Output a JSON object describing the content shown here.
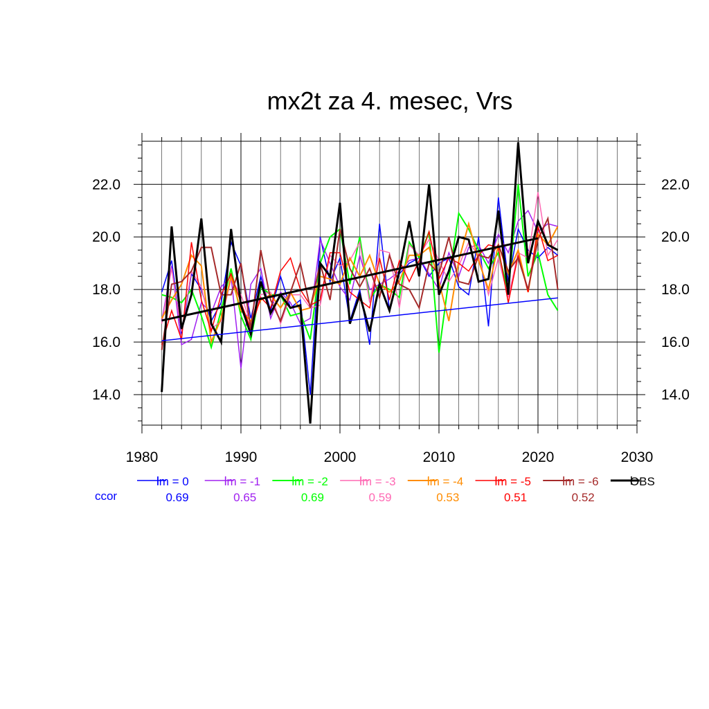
{
  "chart_data": {
    "type": "line",
    "title": "mx2t za 4. mesec, Vrs",
    "xlabel": "",
    "ylabel": "",
    "xlim": [
      1980,
      2030
    ],
    "ylim": [
      12.84,
      23.64
    ],
    "x_ticks": [
      1980,
      1990,
      2000,
      2010,
      2020,
      2030
    ],
    "x_tick_labels": [
      "1980",
      "1990",
      "2000",
      "2010",
      "2020",
      "2030"
    ],
    "y_ticks": [
      14.0,
      16.0,
      18.0,
      20.0,
      22.0
    ],
    "y_tick_labels": [
      "14.0",
      "16.0",
      "18.0",
      "20.0",
      "22.0"
    ],
    "grid": true,
    "legend_position": "bottom",
    "ccor_label": "ccor",
    "x": [
      1982,
      1983,
      1984,
      1985,
      1986,
      1987,
      1988,
      1989,
      1990,
      1991,
      1992,
      1993,
      1994,
      1995,
      1996,
      1997,
      1998,
      1999,
      2000,
      2001,
      2002,
      2003,
      2004,
      2005,
      2006,
      2007,
      2008,
      2009,
      2010,
      2011,
      2012,
      2013,
      2014,
      2015,
      2016,
      2017,
      2018,
      2019,
      2020,
      2021,
      2022
    ],
    "series": [
      {
        "name": "lm = 0",
        "color": "#0000ff",
        "ccor": "0.69",
        "width": 1.5,
        "values": [
          17.9,
          19.1,
          16.3,
          18.6,
          18.0,
          16.8,
          17.5,
          19.8,
          18.9,
          16.9,
          18.5,
          17.2,
          18.5,
          17.3,
          17.6,
          14.0,
          20.0,
          18.3,
          19.2,
          16.8,
          18.0,
          15.9,
          20.5,
          17.2,
          18.6,
          19.0,
          19.2,
          18.5,
          19.0,
          19.2,
          18.1,
          17.8,
          20.0,
          16.6,
          21.5,
          18.3,
          20.3,
          19.5,
          19.2,
          19.6,
          19.3
        ],
        "trend": [
          16.05,
          17.68
        ]
      },
      {
        "name": "lm = -1",
        "color": "#a020f0",
        "ccor": "0.65",
        "width": 1.5,
        "values": [
          16.8,
          18.9,
          15.9,
          16.1,
          17.5,
          17.1,
          18.1,
          18.5,
          15.0,
          18.2,
          18.8,
          16.9,
          17.9,
          17.5,
          16.7,
          16.9,
          19.9,
          19.0,
          18.1,
          17.6,
          19.3,
          18.0,
          18.2,
          18.4,
          18.7,
          19.1,
          19.2,
          18.6,
          18.0,
          19.4,
          18.5,
          19.6,
          19.7,
          19.0,
          20.1,
          19.4,
          20.6,
          21.0,
          20.2,
          20.5,
          20.4
        ]
      },
      {
        "name": "lm = -2",
        "color": "#00ff00",
        "ccor": "0.69",
        "width": 2.0,
        "values": [
          17.8,
          17.7,
          17.5,
          18.0,
          17.0,
          15.8,
          17.2,
          18.8,
          17.0,
          16.1,
          18.1,
          17.8,
          17.8,
          17.0,
          17.1,
          16.1,
          19.0,
          20.0,
          20.3,
          18.2,
          20.0,
          17.6,
          18.2,
          18.0,
          17.7,
          19.8,
          19.2,
          20.2,
          15.6,
          18.4,
          20.9,
          20.3,
          19.5,
          18.8,
          19.4,
          17.9,
          22.0,
          18.5,
          19.4,
          17.8,
          17.2
        ]
      },
      {
        "name": "lm = -3",
        "color": "#ff69b4",
        "ccor": "0.59",
        "width": 1.5,
        "values": [
          16.7,
          18.8,
          16.4,
          18.7,
          18.1,
          16.5,
          16.8,
          18.4,
          17.8,
          16.7,
          17.8,
          17.9,
          16.7,
          17.8,
          17.8,
          17.3,
          17.4,
          19.3,
          18.9,
          19.1,
          19.8,
          17.5,
          19.5,
          19.4,
          17.3,
          19.7,
          19.3,
          19.9,
          19.1,
          18.3,
          18.9,
          19.8,
          19.3,
          17.8,
          19.2,
          17.7,
          19.4,
          19.2,
          21.7,
          19.3,
          19.9
        ]
      },
      {
        "name": "lm = -4",
        "color": "#ff8c00",
        "ccor": "0.53",
        "width": 2.0,
        "values": [
          16.9,
          17.6,
          18.2,
          19.3,
          18.9,
          16.0,
          16.9,
          18.5,
          17.2,
          16.8,
          17.6,
          17.8,
          17.3,
          17.9,
          17.2,
          17.3,
          18.5,
          18.4,
          18.2,
          19.2,
          18.5,
          19.3,
          18.2,
          17.9,
          18.3,
          19.3,
          19.3,
          19.6,
          18.3,
          16.8,
          19.1,
          20.5,
          19.1,
          18.0,
          19.7,
          18.6,
          19.5,
          17.9,
          20.1,
          19.7,
          20.4
        ]
      },
      {
        "name": "lm = -5",
        "color": "#ff0000",
        "ccor": "0.51",
        "width": 1.5,
        "values": [
          15.9,
          17.2,
          16.1,
          19.8,
          17.6,
          16.4,
          17.8,
          18.6,
          17.5,
          16.5,
          17.7,
          17.3,
          18.7,
          19.2,
          18.0,
          17.4,
          17.6,
          19.4,
          19.4,
          17.9,
          17.6,
          17.3,
          19.2,
          17.6,
          19.1,
          18.3,
          19.1,
          20.2,
          18.4,
          19.2,
          19.0,
          18.7,
          19.3,
          19.7,
          19.6,
          17.5,
          19.3,
          17.9,
          20.4,
          19.1,
          19.3
        ]
      },
      {
        "name": "lm = -6",
        "color": "#a52a2a",
        "ccor": "0.52",
        "width": 2.0,
        "values": [
          15.7,
          18.2,
          18.3,
          18.7,
          19.6,
          19.6,
          17.8,
          17.8,
          19.0,
          16.5,
          19.5,
          17.6,
          16.8,
          17.9,
          19.0,
          17.3,
          19.0,
          17.6,
          20.3,
          18.8,
          18.1,
          18.8,
          17.7,
          19.3,
          18.2,
          18.0,
          17.3,
          19.0,
          18.6,
          20.0,
          18.3,
          18.2,
          19.3,
          19.2,
          19.7,
          18.7,
          19.2,
          18.0,
          19.9,
          20.7,
          18.0
        ]
      },
      {
        "name": "OBS",
        "color": "#000000",
        "ccor": "",
        "width": 3.0,
        "values": [
          14.1,
          20.4,
          16.5,
          17.8,
          20.7,
          16.7,
          16.0,
          20.3,
          17.4,
          16.3,
          18.3,
          17.1,
          17.8,
          17.3,
          17.4,
          12.9,
          19.0,
          18.5,
          21.3,
          16.7,
          17.8,
          16.4,
          18.2,
          17.2,
          18.7,
          20.6,
          18.5,
          22.0,
          17.8,
          18.7,
          20.0,
          19.9,
          18.3,
          18.4,
          21.0,
          17.8,
          23.6,
          19.0,
          20.6,
          19.7,
          19.5
        ],
        "trend": [
          16.82,
          19.95
        ],
        "trend_end_year": 2020
      }
    ]
  }
}
